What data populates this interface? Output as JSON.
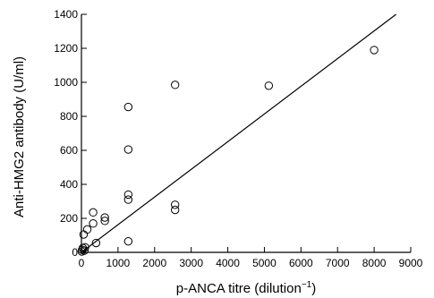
{
  "chart_data": {
    "type": "scatter",
    "xlabel": "p-ANCA titre (dilution",
    "xlabel_superscript": "−1",
    "xlabel_close": ")",
    "ylabel": "Anti-HMG2 antibody (U/ml)",
    "xlim": [
      0,
      9000
    ],
    "ylim": [
      0,
      1400
    ],
    "xticks": [
      0,
      1000,
      2000,
      3000,
      4000,
      5000,
      6000,
      7000,
      8000,
      9000
    ],
    "yticks": [
      0,
      200,
      400,
      600,
      800,
      1000,
      1200,
      1400
    ],
    "grid": false,
    "points": [
      {
        "x": 10,
        "y": 5
      },
      {
        "x": 20,
        "y": 15
      },
      {
        "x": 40,
        "y": 25
      },
      {
        "x": 80,
        "y": 10
      },
      {
        "x": 100,
        "y": 30
      },
      {
        "x": 60,
        "y": 105
      },
      {
        "x": 160,
        "y": 135
      },
      {
        "x": 320,
        "y": 235
      },
      {
        "x": 320,
        "y": 170
      },
      {
        "x": 400,
        "y": 55
      },
      {
        "x": 640,
        "y": 185
      },
      {
        "x": 640,
        "y": 205
      },
      {
        "x": 1280,
        "y": 855
      },
      {
        "x": 1280,
        "y": 605
      },
      {
        "x": 1280,
        "y": 340
      },
      {
        "x": 1280,
        "y": 310
      },
      {
        "x": 1280,
        "y": 65
      },
      {
        "x": 2560,
        "y": 985
      },
      {
        "x": 2560,
        "y": 280
      },
      {
        "x": 2560,
        "y": 250
      },
      {
        "x": 5120,
        "y": 980
      },
      {
        "x": 8000,
        "y": 1190
      }
    ],
    "fit_line": {
      "x": [
        0,
        8600
      ],
      "y": [
        0,
        1400
      ]
    }
  }
}
